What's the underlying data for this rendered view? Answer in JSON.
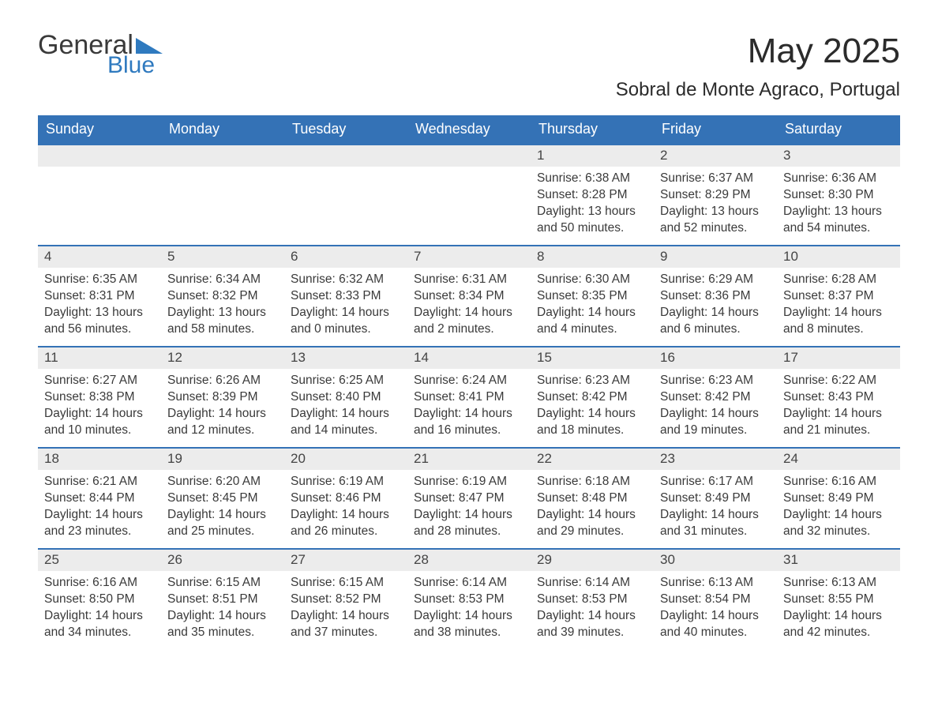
{
  "logo": {
    "text1": "General",
    "text2": "Blue",
    "text1_color": "#3a3a3a",
    "text2_color": "#2f7abf",
    "triangle_color": "#2f7abf"
  },
  "title": "May 2025",
  "location": "Sobral de Monte Agraco, Portugal",
  "colors": {
    "header_bg": "#3472b6",
    "header_text": "#ffffff",
    "daynum_bg": "#ececec",
    "daynum_border": "#3472b6",
    "body_text": "#3a3a3a",
    "page_bg": "#ffffff"
  },
  "weekday_headers": [
    "Sunday",
    "Monday",
    "Tuesday",
    "Wednesday",
    "Thursday",
    "Friday",
    "Saturday"
  ],
  "labels": {
    "sunrise": "Sunrise:",
    "sunset": "Sunset:",
    "daylight": "Daylight:"
  },
  "weeks": [
    [
      null,
      null,
      null,
      null,
      {
        "day": "1",
        "sunrise": "6:38 AM",
        "sunset": "8:28 PM",
        "daylight": "13 hours and 50 minutes."
      },
      {
        "day": "2",
        "sunrise": "6:37 AM",
        "sunset": "8:29 PM",
        "daylight": "13 hours and 52 minutes."
      },
      {
        "day": "3",
        "sunrise": "6:36 AM",
        "sunset": "8:30 PM",
        "daylight": "13 hours and 54 minutes."
      }
    ],
    [
      {
        "day": "4",
        "sunrise": "6:35 AM",
        "sunset": "8:31 PM",
        "daylight": "13 hours and 56 minutes."
      },
      {
        "day": "5",
        "sunrise": "6:34 AM",
        "sunset": "8:32 PM",
        "daylight": "13 hours and 58 minutes."
      },
      {
        "day": "6",
        "sunrise": "6:32 AM",
        "sunset": "8:33 PM",
        "daylight": "14 hours and 0 minutes."
      },
      {
        "day": "7",
        "sunrise": "6:31 AM",
        "sunset": "8:34 PM",
        "daylight": "14 hours and 2 minutes."
      },
      {
        "day": "8",
        "sunrise": "6:30 AM",
        "sunset": "8:35 PM",
        "daylight": "14 hours and 4 minutes."
      },
      {
        "day": "9",
        "sunrise": "6:29 AM",
        "sunset": "8:36 PM",
        "daylight": "14 hours and 6 minutes."
      },
      {
        "day": "10",
        "sunrise": "6:28 AM",
        "sunset": "8:37 PM",
        "daylight": "14 hours and 8 minutes."
      }
    ],
    [
      {
        "day": "11",
        "sunrise": "6:27 AM",
        "sunset": "8:38 PM",
        "daylight": "14 hours and 10 minutes."
      },
      {
        "day": "12",
        "sunrise": "6:26 AM",
        "sunset": "8:39 PM",
        "daylight": "14 hours and 12 minutes."
      },
      {
        "day": "13",
        "sunrise": "6:25 AM",
        "sunset": "8:40 PM",
        "daylight": "14 hours and 14 minutes."
      },
      {
        "day": "14",
        "sunrise": "6:24 AM",
        "sunset": "8:41 PM",
        "daylight": "14 hours and 16 minutes."
      },
      {
        "day": "15",
        "sunrise": "6:23 AM",
        "sunset": "8:42 PM",
        "daylight": "14 hours and 18 minutes."
      },
      {
        "day": "16",
        "sunrise": "6:23 AM",
        "sunset": "8:42 PM",
        "daylight": "14 hours and 19 minutes."
      },
      {
        "day": "17",
        "sunrise": "6:22 AM",
        "sunset": "8:43 PM",
        "daylight": "14 hours and 21 minutes."
      }
    ],
    [
      {
        "day": "18",
        "sunrise": "6:21 AM",
        "sunset": "8:44 PM",
        "daylight": "14 hours and 23 minutes."
      },
      {
        "day": "19",
        "sunrise": "6:20 AM",
        "sunset": "8:45 PM",
        "daylight": "14 hours and 25 minutes."
      },
      {
        "day": "20",
        "sunrise": "6:19 AM",
        "sunset": "8:46 PM",
        "daylight": "14 hours and 26 minutes."
      },
      {
        "day": "21",
        "sunrise": "6:19 AM",
        "sunset": "8:47 PM",
        "daylight": "14 hours and 28 minutes."
      },
      {
        "day": "22",
        "sunrise": "6:18 AM",
        "sunset": "8:48 PM",
        "daylight": "14 hours and 29 minutes."
      },
      {
        "day": "23",
        "sunrise": "6:17 AM",
        "sunset": "8:49 PM",
        "daylight": "14 hours and 31 minutes."
      },
      {
        "day": "24",
        "sunrise": "6:16 AM",
        "sunset": "8:49 PM",
        "daylight": "14 hours and 32 minutes."
      }
    ],
    [
      {
        "day": "25",
        "sunrise": "6:16 AM",
        "sunset": "8:50 PM",
        "daylight": "14 hours and 34 minutes."
      },
      {
        "day": "26",
        "sunrise": "6:15 AM",
        "sunset": "8:51 PM",
        "daylight": "14 hours and 35 minutes."
      },
      {
        "day": "27",
        "sunrise": "6:15 AM",
        "sunset": "8:52 PM",
        "daylight": "14 hours and 37 minutes."
      },
      {
        "day": "28",
        "sunrise": "6:14 AM",
        "sunset": "8:53 PM",
        "daylight": "14 hours and 38 minutes."
      },
      {
        "day": "29",
        "sunrise": "6:14 AM",
        "sunset": "8:53 PM",
        "daylight": "14 hours and 39 minutes."
      },
      {
        "day": "30",
        "sunrise": "6:13 AM",
        "sunset": "8:54 PM",
        "daylight": "14 hours and 40 minutes."
      },
      {
        "day": "31",
        "sunrise": "6:13 AM",
        "sunset": "8:55 PM",
        "daylight": "14 hours and 42 minutes."
      }
    ]
  ]
}
